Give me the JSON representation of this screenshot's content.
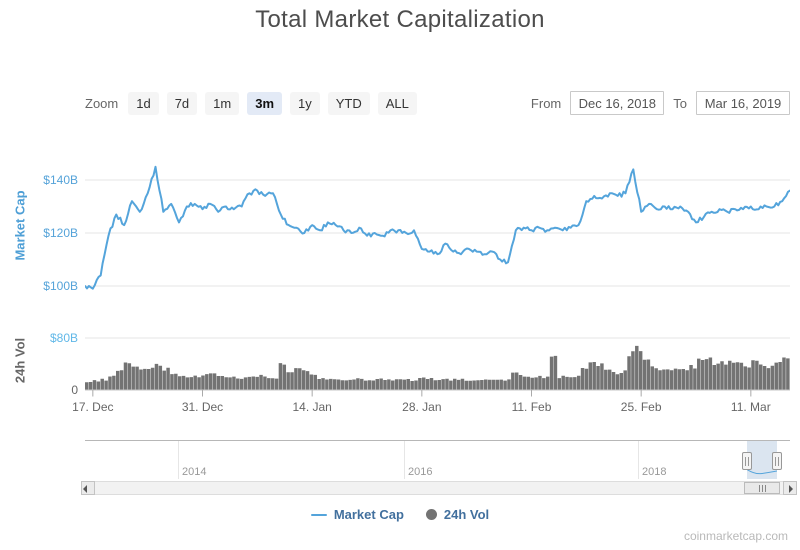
{
  "title": "Total Market Capitalization",
  "watermark": "coinmarketcap.com",
  "toolbar": {
    "zoom_label": "Zoom",
    "zoom_buttons": [
      "1d",
      "7d",
      "1m",
      "3m",
      "1y",
      "YTD",
      "ALL"
    ],
    "zoom_selected": "3m",
    "from_label": "From",
    "from_value": "Dec 16, 2018",
    "to_label": "To",
    "to_value": "Mar 16, 2019"
  },
  "legend": {
    "items": [
      {
        "label": "Market Cap",
        "symbol": "line",
        "color": "#54a4db"
      },
      {
        "label": "24h Vol",
        "symbol": "circle",
        "color": "#737373"
      }
    ]
  },
  "navigator": {
    "year_labels": [
      "2014",
      "2016",
      "2018"
    ],
    "selection_from": "Dec 16, 2018",
    "selection_to": "Mar 16, 2019"
  },
  "scrollbar": {
    "left_icon": "scroll-left-arrow",
    "right_icon": "scroll-right-arrow"
  },
  "chart_data": {
    "type": "line",
    "title": "Total Market Capitalization",
    "x_start_date": "2018-12-16",
    "x_end_date": "2019-03-16",
    "x_interval": "1 day",
    "xticks": [
      "17. Dec",
      "31. Dec",
      "14. Jan",
      "28. Jan",
      "11. Feb",
      "25. Feb",
      "11. Mar"
    ],
    "xtick_day_offsets": [
      1,
      15,
      29,
      43,
      57,
      71,
      85
    ],
    "grid": true,
    "legend_position": "bottom",
    "series": [
      {
        "name": "Market Cap",
        "type": "line",
        "color": "#54a4db",
        "unit": "USD billions",
        "axis": {
          "label": "Market Cap",
          "ticks": [
            "$140B",
            "$120B",
            "$100B"
          ],
          "tick_values": [
            140,
            120,
            100
          ],
          "range": [
            96,
            150
          ]
        },
        "values": [
          100,
          99,
          104,
          119,
          127,
          123,
          132,
          128,
          135,
          145,
          128,
          131,
          124,
          130,
          131,
          129,
          131,
          128,
          130,
          129,
          130,
          135,
          136,
          134,
          135,
          127,
          123,
          122,
          120,
          123,
          121,
          124,
          123,
          121,
          120,
          122,
          119,
          120,
          119,
          121,
          121,
          120,
          121,
          114,
          113,
          112,
          116,
          113,
          112,
          114,
          113,
          112,
          113,
          110,
          109,
          121,
          122,
          121,
          122,
          121,
          122,
          121,
          122,
          123,
          132,
          134,
          133,
          135,
          134,
          135,
          144,
          128,
          131,
          129,
          130,
          129,
          130,
          128,
          124,
          126,
          128,
          129,
          128,
          129,
          129,
          130,
          129,
          130,
          130,
          132,
          136
        ]
      },
      {
        "name": "24h Vol",
        "type": "column",
        "color": "#737373",
        "unit": "USD billions",
        "axis": {
          "label": "24h Vol",
          "ticks": [
            "$80B",
            "0"
          ],
          "tick_values": [
            80,
            0
          ],
          "range": [
            0,
            92
          ]
        },
        "values": [
          13,
          14,
          16,
          22,
          28,
          43,
          35,
          30,
          33,
          38,
          32,
          26,
          22,
          20,
          21,
          23,
          25,
          22,
          20,
          19,
          18,
          20,
          22,
          20,
          18,
          38,
          28,
          33,
          30,
          22,
          18,
          16,
          17,
          16,
          15,
          17,
          15,
          16,
          17,
          16,
          18,
          16,
          15,
          18,
          17,
          16,
          17,
          16,
          16,
          15,
          16,
          15,
          16,
          15,
          16,
          26,
          21,
          19,
          20,
          19,
          54,
          20,
          21,
          22,
          36,
          42,
          38,
          30,
          26,
          28,
          55,
          62,
          44,
          34,
          32,
          30,
          34,
          30,
          36,
          44,
          48,
          38,
          42,
          46,
          40,
          38,
          44,
          40,
          36,
          42,
          52
        ]
      }
    ]
  }
}
